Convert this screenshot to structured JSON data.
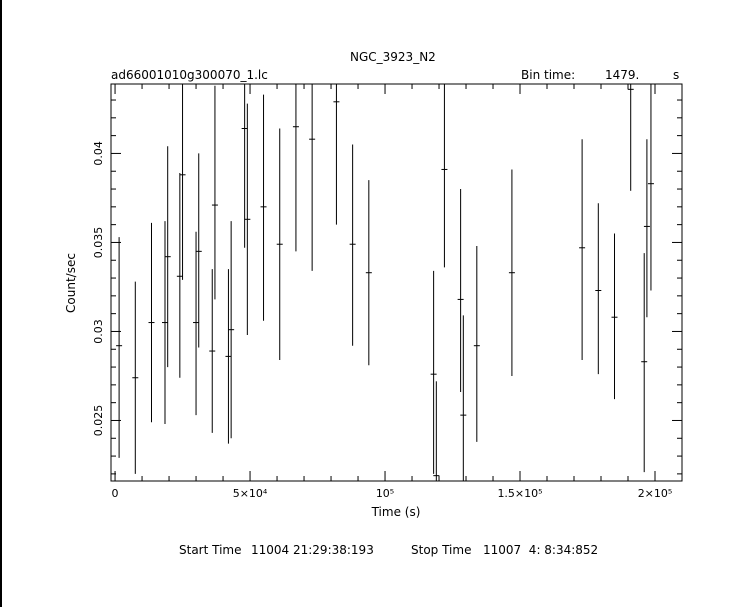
{
  "header": {
    "title": "NGC_3923_N2",
    "filename": "ad66001010g300070_1.lc",
    "bin_label": "Bin time:",
    "bin_value": "1479.",
    "bin_unit": "s"
  },
  "footer": {
    "start_label": "Start Time",
    "start_value": "11004 21:29:38:193",
    "stop_label": "Stop Time",
    "stop_value": "11007  4: 8:34:852"
  },
  "chart_data": {
    "type": "scatter",
    "title": "NGC_3923_N2",
    "xlabel": "Time (s)",
    "ylabel": "Count/sec",
    "xlim": [
      -1500,
      210000
    ],
    "ylim": [
      0.0216,
      0.0439
    ],
    "x_ticks": [
      {
        "value": 0,
        "label": "0"
      },
      {
        "value": 50000,
        "label": "5×10⁴"
      },
      {
        "value": 100000,
        "label": "10⁵"
      },
      {
        "value": 150000,
        "label": "1.5×10⁵"
      },
      {
        "value": 200000,
        "label": "2×10⁵"
      }
    ],
    "y_ticks": [
      {
        "value": 0.025,
        "label": "0.025"
      },
      {
        "value": 0.03,
        "label": "0.03"
      },
      {
        "value": 0.035,
        "label": "0.035"
      },
      {
        "value": 0.04,
        "label": "0.04"
      }
    ],
    "grid": false,
    "points": [
      {
        "x": 1500,
        "y": 0.0292,
        "lo": 0.0229,
        "hi": 0.0353
      },
      {
        "x": 7500,
        "y": 0.0274,
        "lo": 0.022,
        "hi": 0.0328
      },
      {
        "x": 13500,
        "y": 0.0305,
        "lo": 0.0249,
        "hi": 0.0361
      },
      {
        "x": 18500,
        "y": 0.0305,
        "lo": 0.0248,
        "hi": 0.0362
      },
      {
        "x": 19500,
        "y": 0.0342,
        "lo": 0.028,
        "hi": 0.0404
      },
      {
        "x": 24000,
        "y": 0.0331,
        "lo": 0.0274,
        "hi": 0.0389
      },
      {
        "x": 25000,
        "y": 0.0388,
        "lo": 0.0329,
        "hi": 0.0446
      },
      {
        "x": 30000,
        "y": 0.0305,
        "lo": 0.0253,
        "hi": 0.0356
      },
      {
        "x": 31000,
        "y": 0.0345,
        "lo": 0.0291,
        "hi": 0.04
      },
      {
        "x": 36000,
        "y": 0.0289,
        "lo": 0.0243,
        "hi": 0.0335
      },
      {
        "x": 37000,
        "y": 0.0371,
        "lo": 0.0318,
        "hi": 0.0438
      },
      {
        "x": 42000,
        "y": 0.0286,
        "lo": 0.0237,
        "hi": 0.0335
      },
      {
        "x": 43000,
        "y": 0.0301,
        "lo": 0.024,
        "hi": 0.0362
      },
      {
        "x": 48000,
        "y": 0.0414,
        "lo": 0.0347,
        "hi": 0.0444
      },
      {
        "x": 49000,
        "y": 0.0363,
        "lo": 0.0298,
        "hi": 0.0428
      },
      {
        "x": 55000,
        "y": 0.037,
        "lo": 0.0306,
        "hi": 0.0433
      },
      {
        "x": 61000,
        "y": 0.0349,
        "lo": 0.0284,
        "hi": 0.0414
      },
      {
        "x": 67000,
        "y": 0.0415,
        "lo": 0.0345,
        "hi": 0.0444
      },
      {
        "x": 73000,
        "y": 0.0408,
        "lo": 0.0334,
        "hi": 0.0444
      },
      {
        "x": 82000,
        "y": 0.0429,
        "lo": 0.036,
        "hi": 0.0444
      },
      {
        "x": 88000,
        "y": 0.0349,
        "lo": 0.0292,
        "hi": 0.0405
      },
      {
        "x": 94000,
        "y": 0.0333,
        "lo": 0.0281,
        "hi": 0.0385
      },
      {
        "x": 118000,
        "y": 0.0276,
        "lo": 0.022,
        "hi": 0.0334
      },
      {
        "x": 119000,
        "y": 0.0219,
        "lo": 0.0216,
        "hi": 0.0272
      },
      {
        "x": 122000,
        "y": 0.0391,
        "lo": 0.0336,
        "hi": 0.0444
      },
      {
        "x": 128000,
        "y": 0.0318,
        "lo": 0.0266,
        "hi": 0.038
      },
      {
        "x": 129000,
        "y": 0.0253,
        "lo": 0.0216,
        "hi": 0.0309
      },
      {
        "x": 134000,
        "y": 0.0292,
        "lo": 0.0238,
        "hi": 0.0348
      },
      {
        "x": 147000,
        "y": 0.0333,
        "lo": 0.0275,
        "hi": 0.0391
      },
      {
        "x": 173000,
        "y": 0.0347,
        "lo": 0.0284,
        "hi": 0.0408
      },
      {
        "x": 179000,
        "y": 0.0323,
        "lo": 0.0276,
        "hi": 0.0372
      },
      {
        "x": 185000,
        "y": 0.0308,
        "lo": 0.0262,
        "hi": 0.0355
      },
      {
        "x": 191000,
        "y": 0.0436,
        "lo": 0.0379,
        "hi": 0.0444
      },
      {
        "x": 196000,
        "y": 0.0283,
        "lo": 0.0221,
        "hi": 0.0344
      },
      {
        "x": 197000,
        "y": 0.0359,
        "lo": 0.0308,
        "hi": 0.0408
      },
      {
        "x": 198500,
        "y": 0.0383,
        "lo": 0.0323,
        "hi": 0.0444
      }
    ]
  }
}
